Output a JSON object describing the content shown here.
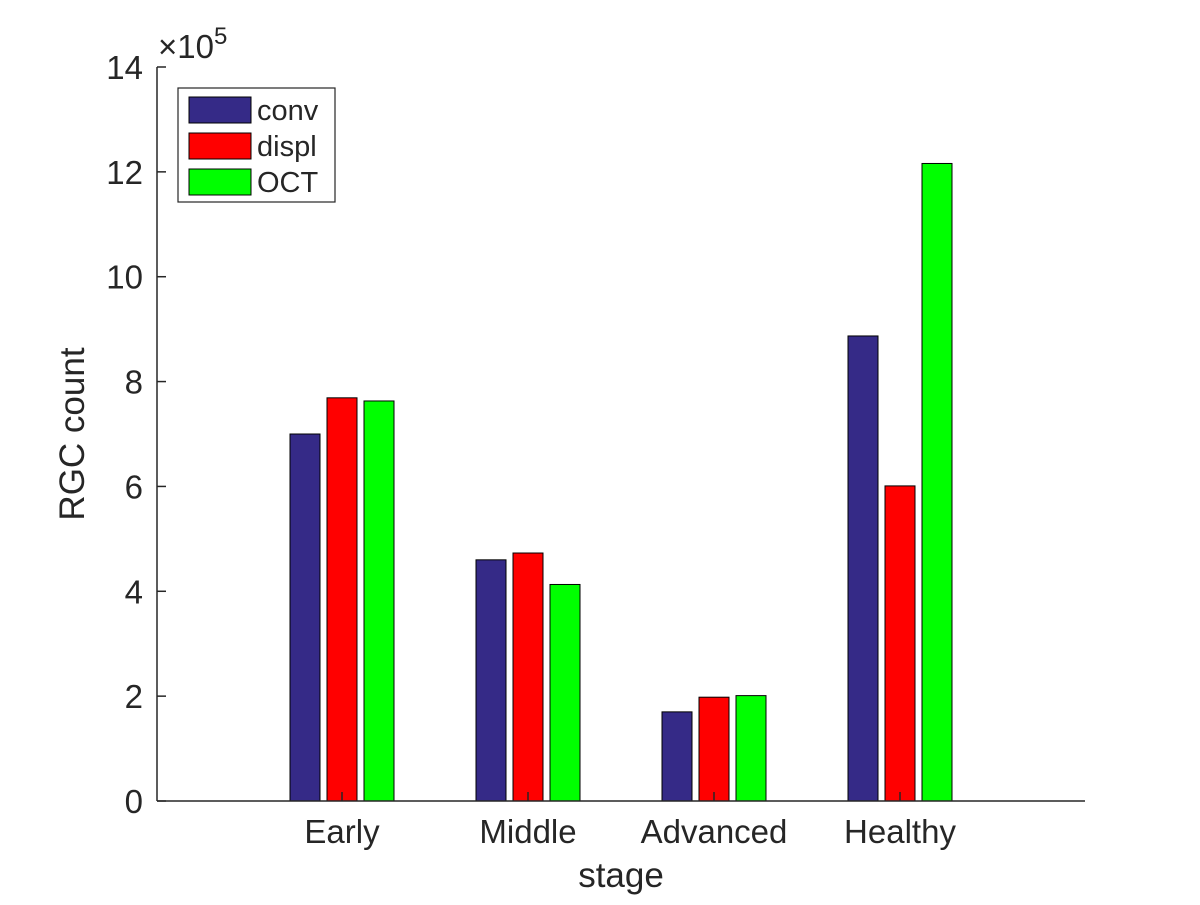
{
  "chart_data": {
    "type": "bar",
    "title": "",
    "xlabel": "stage",
    "ylabel": "RGC count",
    "y_multiplier_label": "×10",
    "y_multiplier_exponent": "5",
    "ylim": [
      0,
      14
    ],
    "yticks": [
      0,
      2,
      4,
      6,
      8,
      10,
      12,
      14
    ],
    "categories": [
      "Early",
      "Middle",
      "Advanced",
      "Healthy"
    ],
    "grid": false,
    "legend_position": "top-left",
    "series": [
      {
        "name": "conv",
        "color": "#352A87",
        "values": [
          7.0,
          4.6,
          1.7,
          8.87
        ]
      },
      {
        "name": "displ",
        "color": "#FF0000",
        "values": [
          7.69,
          4.73,
          1.98,
          6.01
        ]
      },
      {
        "name": "OCT",
        "color": "#00FF00",
        "values": [
          7.63,
          4.13,
          2.01,
          12.16
        ]
      }
    ]
  }
}
